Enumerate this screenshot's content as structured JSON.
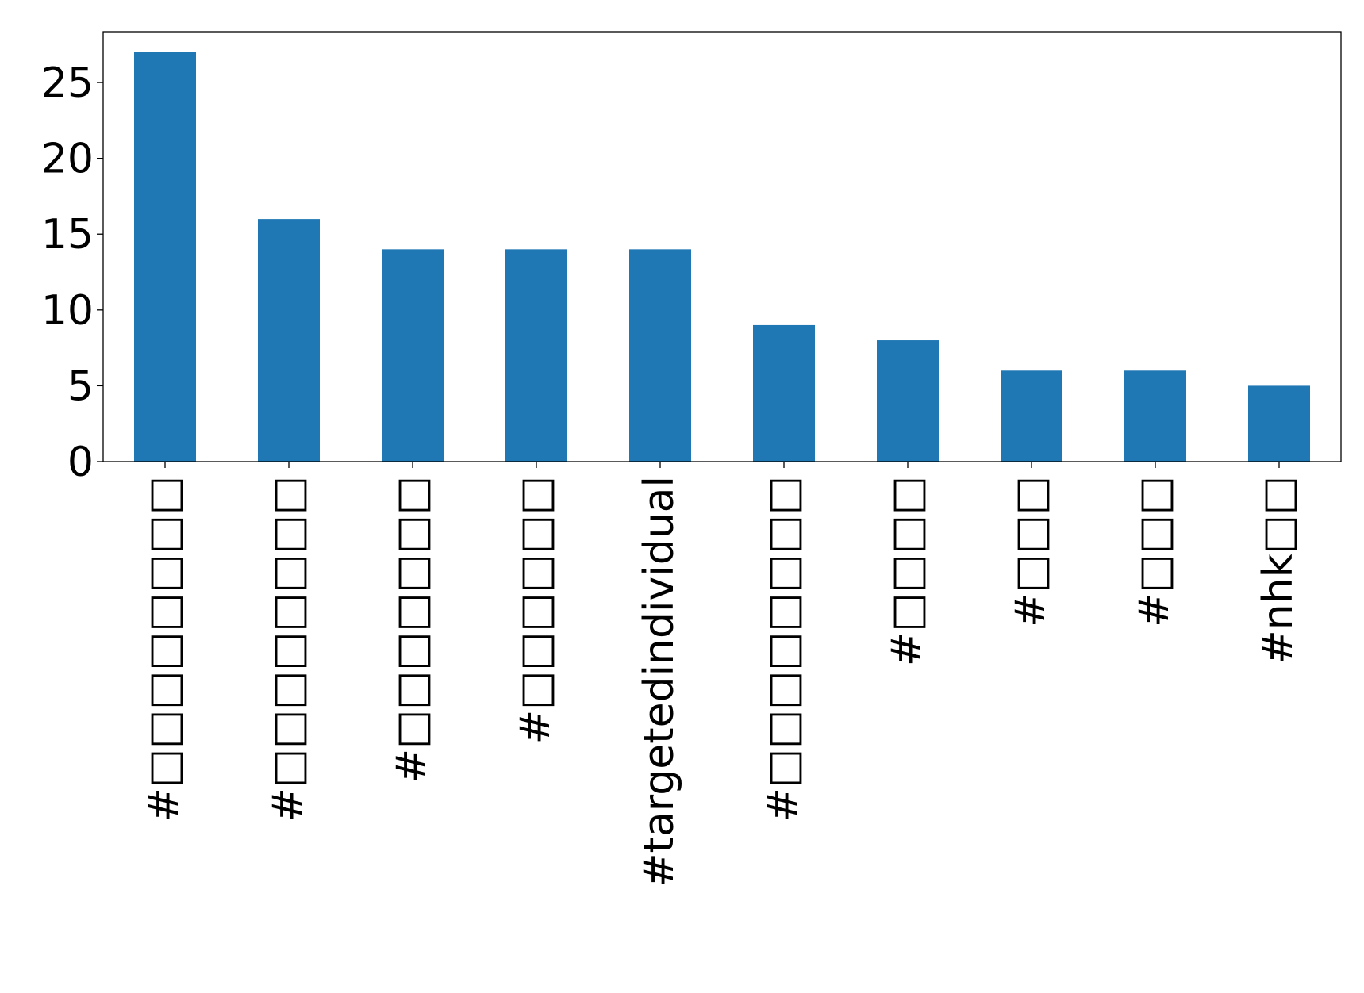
{
  "chart_data": {
    "type": "bar",
    "categories": [
      "#□□□□□□□□",
      "#□□□□□□□□",
      "#□□□□□□□",
      "#□□□□□□",
      "#targetedindividual",
      "#□□□□□□□□",
      "#□□□□",
      "#□□□",
      "#□□□",
      "#nhk□□"
    ],
    "values": [
      27,
      16,
      14,
      14,
      14,
      9,
      8,
      6,
      6,
      5
    ],
    "ylim": [
      0,
      28.35
    ],
    "yticks": [
      0,
      5,
      10,
      15,
      20,
      25
    ],
    "xlabel": "",
    "ylabel": "",
    "title": "",
    "grid": false,
    "colors": {
      "bar": "#1f77b4",
      "axis": "#000000"
    }
  }
}
